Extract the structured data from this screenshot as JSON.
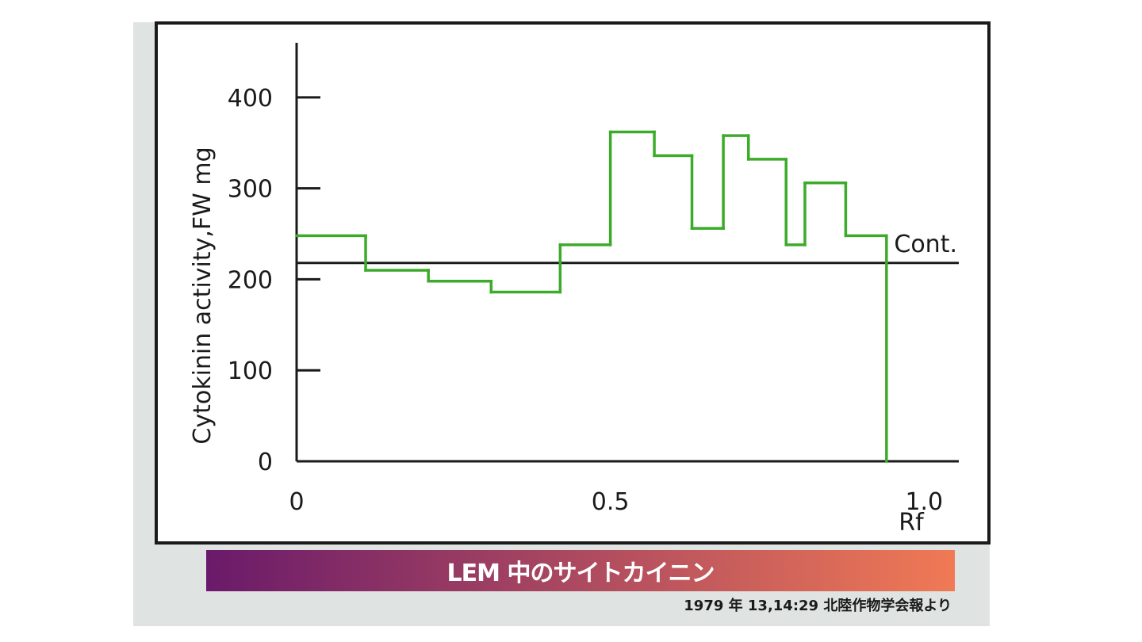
{
  "colors": {
    "series": "#3cab2a",
    "axis": "#1a1a1a",
    "banner_start": "#6a1a6a",
    "banner_end": "#f07a55",
    "slide_bg": "#dfe4e2"
  },
  "banner": {
    "title": "LEM 中のサイトカイニン"
  },
  "citation": "1979 年 13,14:29 北陸作物学会報より",
  "chart_data": {
    "type": "line",
    "step": true,
    "title": "",
    "xlabel": "Rf",
    "ylabel": "Cytokinin activity,FW mg",
    "xlim": [
      0,
      1.15
    ],
    "ylim": [
      0,
      460
    ],
    "x_ticks": [
      {
        "value": 0,
        "label": "0"
      },
      {
        "value": 0.5,
        "label": "0.5"
      },
      {
        "value": 1.0,
        "label": "1.0"
      }
    ],
    "y_ticks": [
      {
        "value": 0,
        "label": "0"
      },
      {
        "value": 100,
        "label": "100"
      },
      {
        "value": 200,
        "label": "200"
      },
      {
        "value": 300,
        "label": "300"
      },
      {
        "value": 400,
        "label": "400"
      }
    ],
    "grid": false,
    "control": {
      "label": "Cont.",
      "value": 218
    },
    "bins": [
      {
        "x0": 0.0,
        "x1": 0.11,
        "y": 248
      },
      {
        "x0": 0.11,
        "x1": 0.21,
        "y": 210
      },
      {
        "x0": 0.21,
        "x1": 0.31,
        "y": 198
      },
      {
        "x0": 0.31,
        "x1": 0.42,
        "y": 186
      },
      {
        "x0": 0.42,
        "x1": 0.5,
        "y": 238
      },
      {
        "x0": 0.5,
        "x1": 0.57,
        "y": 362
      },
      {
        "x0": 0.57,
        "x1": 0.63,
        "y": 336
      },
      {
        "x0": 0.63,
        "x1": 0.68,
        "y": 256
      },
      {
        "x0": 0.68,
        "x1": 0.72,
        "y": 358
      },
      {
        "x0": 0.72,
        "x1": 0.78,
        "y": 332
      },
      {
        "x0": 0.78,
        "x1": 0.81,
        "y": 238
      },
      {
        "x0": 0.81,
        "x1": 0.875,
        "y": 306
      },
      {
        "x0": 0.875,
        "x1": 0.94,
        "y": 248
      },
      {
        "x0": 0.94,
        "x1": 0.94,
        "y": 0
      }
    ]
  }
}
